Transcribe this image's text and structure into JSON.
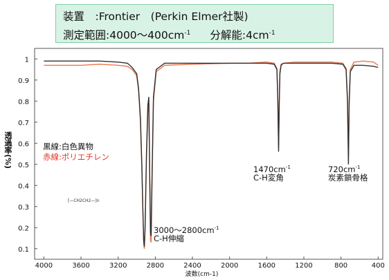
{
  "header": {
    "device_line": "装置　:Frontier　(Perkin Elmer社製)",
    "range_line": "測定範囲:4000～400cm",
    "range_sup": "-1",
    "resolution_line": "分解能:4cm",
    "resolution_sup": "-1"
  },
  "legend": {
    "black": "黒線:白色異物",
    "red": "赤線:ポリエチレン"
  },
  "annotations": {
    "ch_stretch_wavenumber": "3000～2800cm",
    "ch_stretch_sup": "-1",
    "ch_stretch_name": "C-H伸縮",
    "ch_bend_wavenumber": "1470cm",
    "ch_bend_sup": "-1",
    "ch_bend_name": "C-H変角",
    "rocking_wavenumber": "720cm",
    "rocking_sup": "-1",
    "rocking_name": "炭素鎖骨格"
  },
  "polymer_formula": "[—CH2CH2—]n",
  "colors": {
    "black_series": "#2f2f2f",
    "red_series": "#e8764e",
    "box_bg": "#d9f2e6",
    "box_border": "#7ccf9f",
    "red_text": "#e0382b"
  },
  "chart_data": {
    "type": "line",
    "xlabel": "波数(cm-1)",
    "ylabel": "透過率(%)",
    "xlim": [
      4100,
      350
    ],
    "ylim": [
      0.05,
      1.05
    ],
    "xticks": [
      4000,
      3600,
      3200,
      2800,
      2400,
      2000,
      1600,
      1200,
      800,
      400
    ],
    "yticks": [
      0.1,
      0.2,
      0.3,
      0.4,
      0.5,
      0.6,
      0.7,
      0.8,
      0.9,
      1
    ],
    "grid": false,
    "series": [
      {
        "name": "白色異物",
        "color": "#2f2f2f",
        "x": [
          4000,
          3600,
          3400,
          3200,
          3100,
          3050,
          3000,
          2980,
          2960,
          2945,
          2935,
          2925,
          2918,
          2910,
          2895,
          2880,
          2870,
          2860,
          2852,
          2845,
          2835,
          2820,
          2790,
          2700,
          2400,
          2000,
          1800,
          1600,
          1520,
          1490,
          1480,
          1472,
          1465,
          1458,
          1445,
          1420,
          1300,
          1100,
          900,
          780,
          745,
          730,
          720,
          712,
          700,
          660,
          560,
          450,
          400
        ],
        "y": [
          0.99,
          0.99,
          0.99,
          0.985,
          0.98,
          0.96,
          0.93,
          0.86,
          0.72,
          0.5,
          0.3,
          0.14,
          0.11,
          0.2,
          0.55,
          0.78,
          0.82,
          0.45,
          0.18,
          0.16,
          0.45,
          0.82,
          0.95,
          0.98,
          0.98,
          0.98,
          0.98,
          0.98,
          0.975,
          0.95,
          0.8,
          0.56,
          0.78,
          0.93,
          0.97,
          0.98,
          0.98,
          0.98,
          0.98,
          0.975,
          0.95,
          0.8,
          0.5,
          0.78,
          0.94,
          0.97,
          0.97,
          0.965,
          0.96
        ]
      },
      {
        "name": "ポリエチレン",
        "color": "#e8764e",
        "x": [
          4000,
          3600,
          3400,
          3200,
          3100,
          3050,
          3000,
          2980,
          2960,
          2945,
          2935,
          2925,
          2918,
          2910,
          2895,
          2880,
          2870,
          2860,
          2852,
          2845,
          2835,
          2820,
          2790,
          2700,
          2400,
          2000,
          1800,
          1600,
          1520,
          1490,
          1480,
          1472,
          1465,
          1458,
          1445,
          1420,
          1300,
          1100,
          900,
          780,
          745,
          730,
          720,
          712,
          700,
          660,
          560,
          450,
          400
        ],
        "y": [
          0.97,
          0.97,
          0.975,
          0.97,
          0.965,
          0.95,
          0.92,
          0.85,
          0.7,
          0.48,
          0.29,
          0.13,
          0.1,
          0.19,
          0.52,
          0.75,
          0.79,
          0.43,
          0.14,
          0.13,
          0.42,
          0.8,
          0.94,
          0.97,
          0.975,
          0.98,
          0.98,
          0.985,
          0.98,
          0.955,
          0.8,
          0.58,
          0.8,
          0.94,
          0.975,
          0.98,
          0.985,
          0.985,
          0.985,
          0.98,
          0.955,
          0.82,
          0.55,
          0.8,
          0.95,
          0.985,
          0.99,
          0.985,
          0.97
        ]
      }
    ]
  }
}
